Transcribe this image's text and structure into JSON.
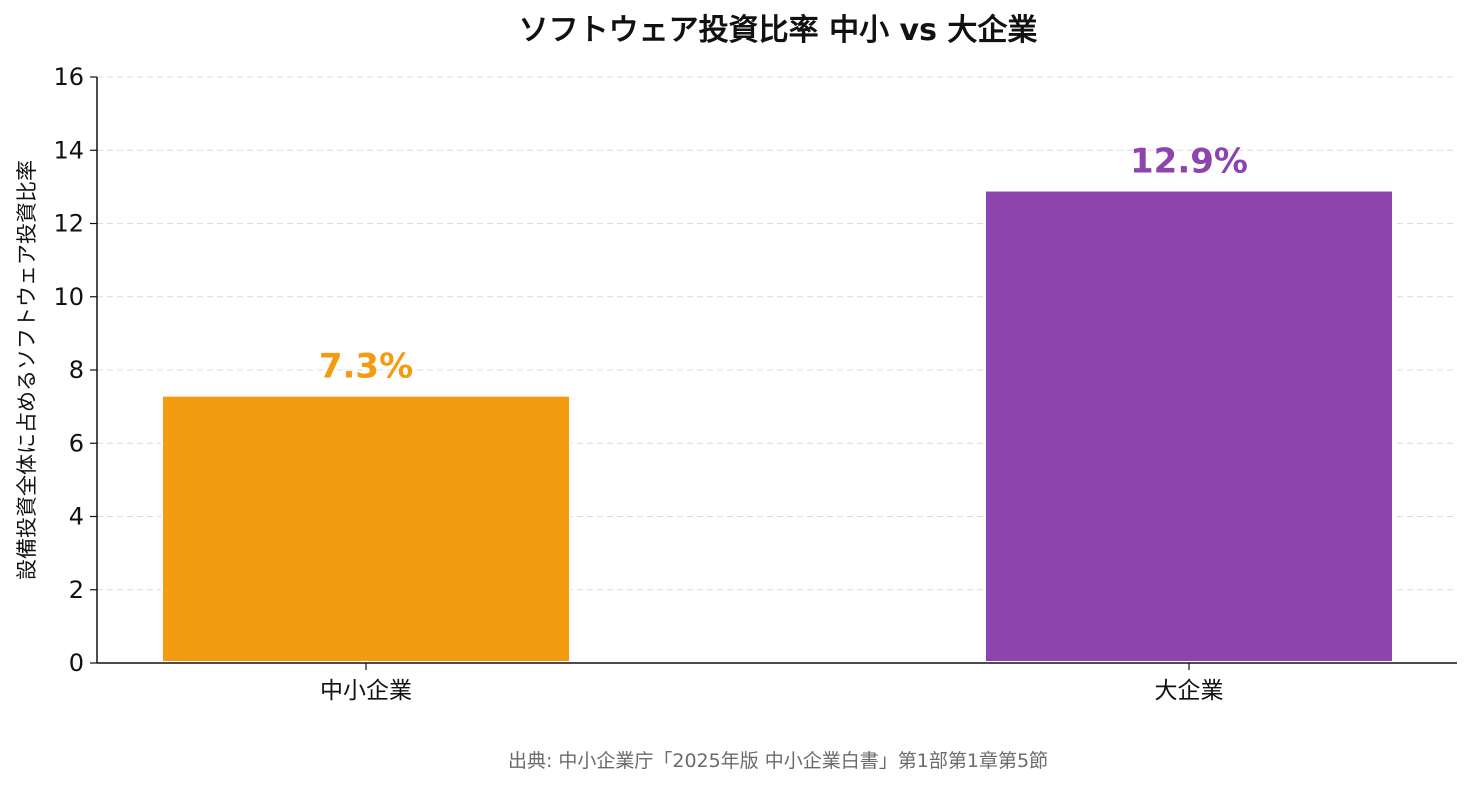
{
  "chart_data": {
    "type": "bar",
    "title": "ソフトウェア投資比率 中小 vs 大企業",
    "xlabel": "",
    "ylabel": "設備投資全体に占めるソフトウェア投資比率",
    "categories": [
      "中小企業",
      "大企業"
    ],
    "values": [
      7.3,
      12.9
    ],
    "data_labels": [
      "7.3%",
      "12.9%"
    ],
    "colors": [
      "#F39C12",
      "#8E44AD"
    ],
    "ylim": [
      0,
      16
    ],
    "yticks": [
      0,
      2,
      4,
      6,
      8,
      10,
      12,
      14,
      16
    ],
    "grid": true,
    "legend": "none",
    "source": "出典: 中小企業庁「2025年版 中小企業白書」第1部第1章第5節"
  }
}
